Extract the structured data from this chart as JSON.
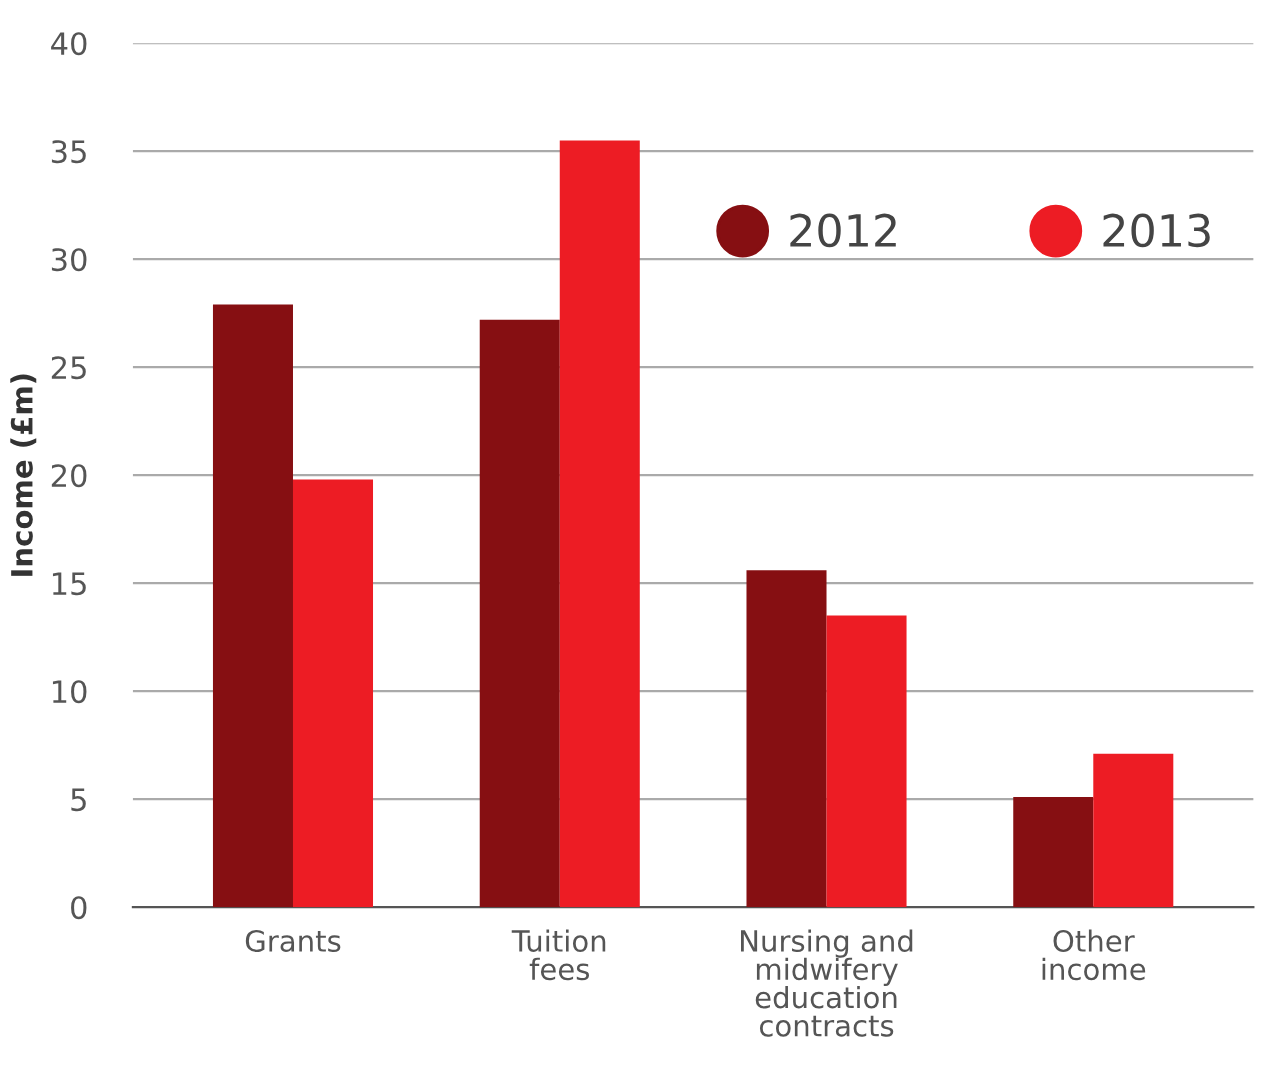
{
  "chart_data": {
    "type": "bar",
    "ylabel": "Income (£m)",
    "categories": [
      "Grants",
      "Tuition\nfees",
      "Nursing and\nmidwifery\neducation\ncontracts",
      "Other\nincome"
    ],
    "series": [
      {
        "name": "2012",
        "color": "#860f12",
        "values": [
          27.9,
          27.2,
          15.6,
          5.1
        ]
      },
      {
        "name": "2013",
        "color": "#ed1c24",
        "values": [
          19.8,
          35.5,
          13.5,
          7.1
        ]
      }
    ],
    "ylim": [
      0,
      40
    ],
    "yticks": [
      0,
      5,
      10,
      15,
      20,
      25,
      30,
      35,
      40
    ],
    "grid": "y",
    "legend": "top right"
  }
}
